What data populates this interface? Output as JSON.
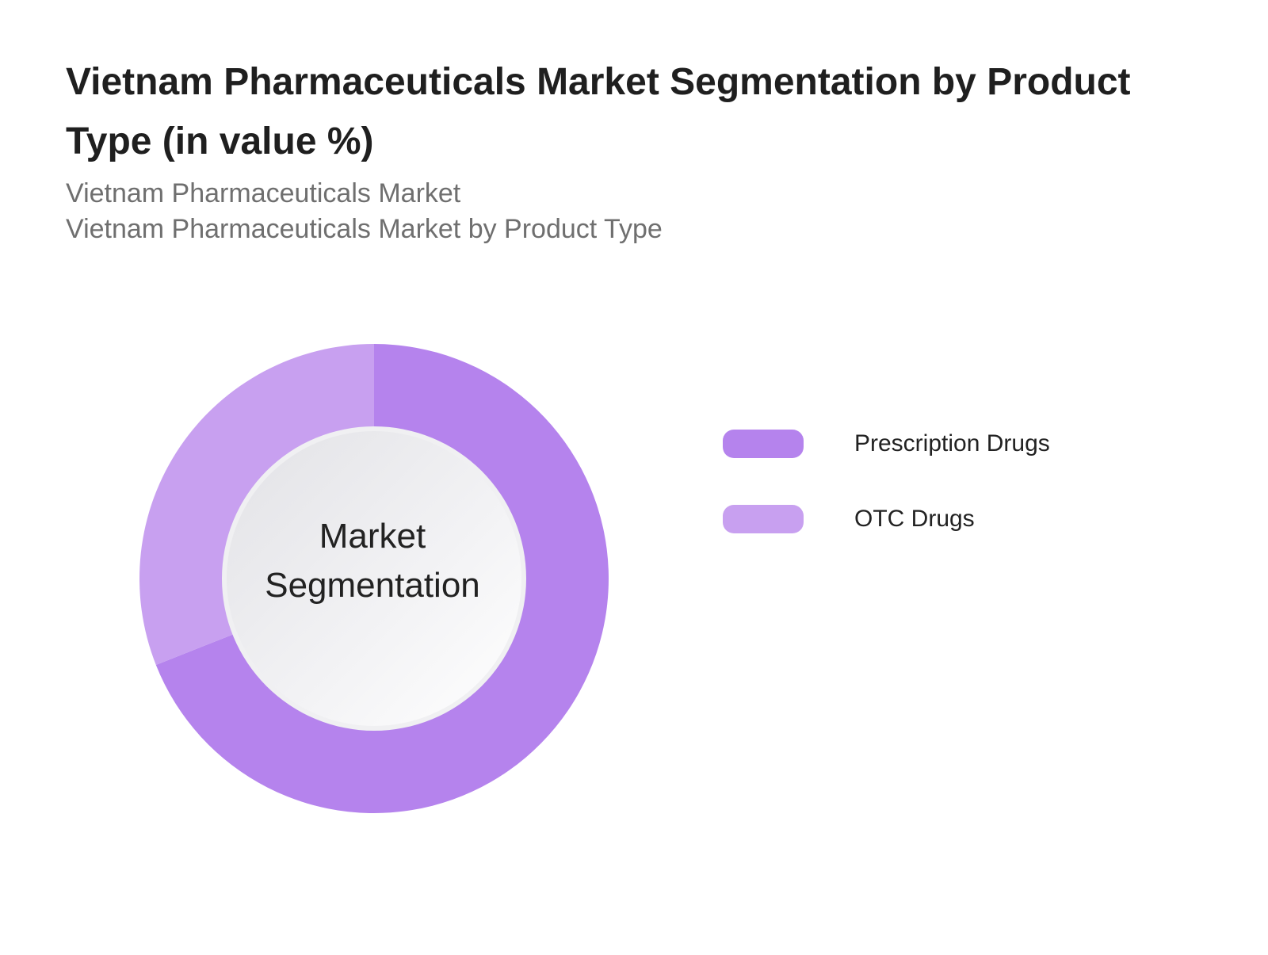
{
  "header": {
    "title": "Vietnam Pharmaceuticals Market Segmentation by Product Type (in value %)",
    "subtitle_line1": "Vietnam Pharmaceuticals Market",
    "subtitle_line2": "Vietnam Pharmaceuticals Market by Product Type"
  },
  "chart_data": {
    "type": "pie",
    "variant": "donut",
    "title": "Vietnam Pharmaceuticals Market Segmentation by Product Type (in value %)",
    "center_label": "Market Segmentation",
    "categories": [
      "Prescription Drugs",
      "OTC Drugs"
    ],
    "values": [
      69,
      31
    ],
    "colors": [
      "#b583ed",
      "#c8a0f0"
    ],
    "start_angle_deg": 0,
    "direction": "clockwise",
    "legend": {
      "position": "right",
      "entries": [
        "Prescription Drugs",
        "OTC Drugs"
      ]
    }
  }
}
